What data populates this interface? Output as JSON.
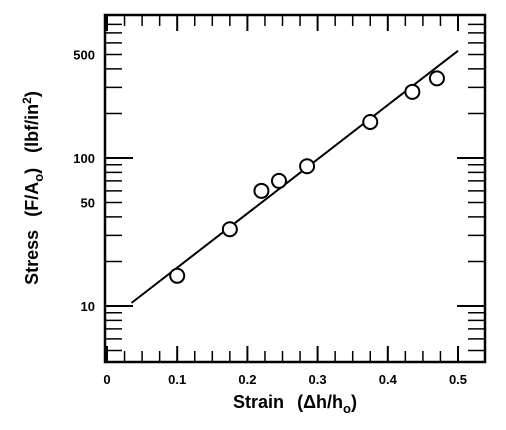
{
  "chart_data": {
    "type": "scatter",
    "xlabel": "Strain",
    "xlabel_unit": {
      "open": "(",
      "main": "Δh/h",
      "sub": "o",
      "close": ")"
    },
    "ylabel": "Stress",
    "ylabel_unit_main": {
      "open": "(",
      "main": "F/A",
      "sub": "o",
      "close": ")"
    },
    "ylabel_unit_second": {
      "open": "(",
      "main": "lbf/in",
      "sup": "2",
      "close": ")"
    },
    "xlim": [
      0,
      0.5
    ],
    "ylim": [
      3,
      800
    ],
    "yscale": "log",
    "xticks": [
      {
        "value": 0,
        "label": "0"
      },
      {
        "value": 0.1,
        "label": "0.1"
      },
      {
        "value": 0.2,
        "label": "0.2"
      },
      {
        "value": 0.3,
        "label": "0.3"
      },
      {
        "value": 0.4,
        "label": "0.4"
      },
      {
        "value": 0.5,
        "label": "0.5"
      }
    ],
    "yticks": [
      {
        "value": 10,
        "label": "10"
      },
      {
        "value": 50,
        "label": "50"
      },
      {
        "value": 100,
        "label": "100"
      },
      {
        "value": 500,
        "label": "500"
      }
    ],
    "series": [
      {
        "marker": "open-circle",
        "x": [
          0.1,
          0.175,
          0.22,
          0.245,
          0.285,
          0.375,
          0.435,
          0.47
        ],
        "y": [
          16,
          33,
          60,
          70,
          88,
          175,
          280,
          345
        ]
      }
    ],
    "fit_line": {
      "x": [
        0.035,
        0.5
      ],
      "y": [
        10.5,
        530
      ]
    },
    "grid": false
  }
}
